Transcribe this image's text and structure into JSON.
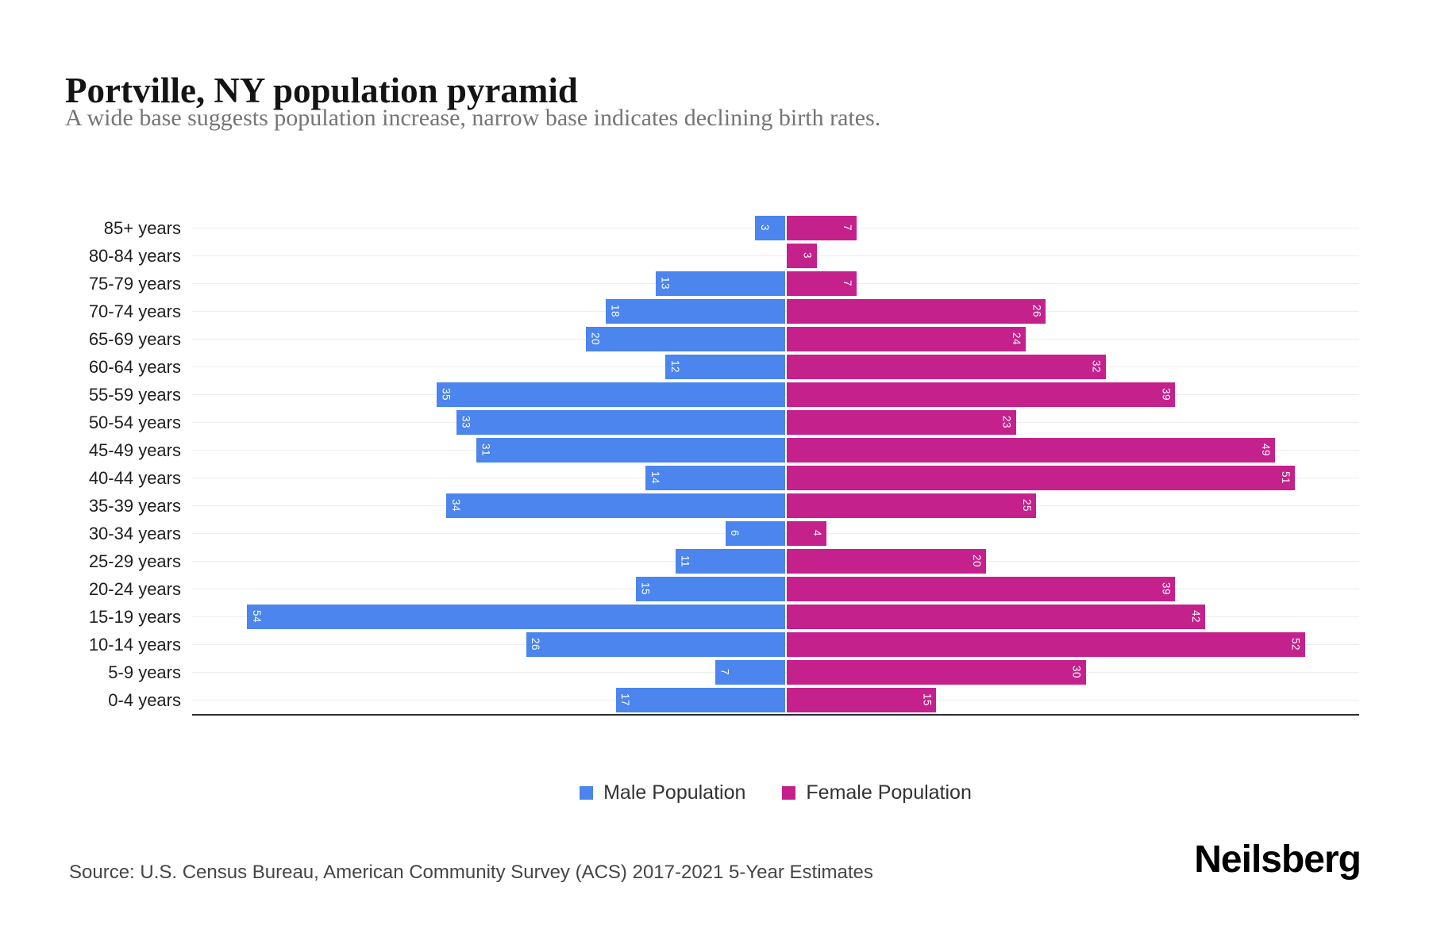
{
  "header": {
    "title": "Portville, NY population pyramid",
    "subtitle": "A wide base suggests population increase, narrow base indicates declining birth rates."
  },
  "chart_data": {
    "type": "bar",
    "variant": "population-pyramid",
    "title": "Portville, NY population pyramid",
    "xlabel": "",
    "ylabel": "",
    "xlim": [
      -60,
      58
    ],
    "grid": true,
    "legend_position": "bottom-center",
    "value_labels": "inside-end, rotated 90deg, white",
    "categories": [
      "85+ years",
      "80-84 years",
      "75-79 years",
      "70-74 years",
      "65-69 years",
      "60-64 years",
      "55-59 years",
      "50-54 years",
      "45-49 years",
      "40-44 years",
      "35-39 years",
      "30-34 years",
      "25-29 years",
      "20-24 years",
      "15-19 years",
      "10-14 years",
      "5-9 years",
      "0-4 years"
    ],
    "series": [
      {
        "name": "Male Population",
        "side": "left",
        "color": "#4B85ED",
        "values": [
          3,
          0,
          13,
          18,
          20,
          12,
          35,
          33,
          31,
          14,
          34,
          6,
          11,
          15,
          54,
          26,
          7,
          17
        ]
      },
      {
        "name": "Female Population",
        "side": "right",
        "color": "#C4218C",
        "values": [
          7,
          3,
          7,
          26,
          24,
          32,
          39,
          23,
          49,
          51,
          25,
          4,
          20,
          39,
          42,
          52,
          30,
          15
        ]
      }
    ]
  },
  "legend": {
    "items": [
      {
        "label": "Male Population",
        "color": "#4B85ED"
      },
      {
        "label": "Female Population",
        "color": "#C4218C"
      }
    ]
  },
  "footer": {
    "source": "Source: U.S. Census Bureau, American Community Survey (ACS) 2017-2021 5-Year Estimates",
    "brand": "Neilsberg"
  }
}
